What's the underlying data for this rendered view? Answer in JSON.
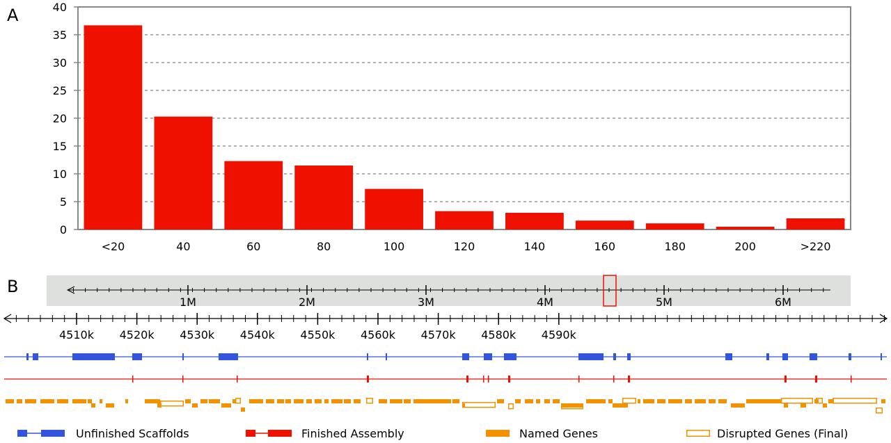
{
  "panels": {
    "a": "A",
    "b": "B"
  },
  "colors": {
    "bar": "#ee1100",
    "blue": "#3355dd",
    "red": "#ee1100",
    "orange": "#f39200",
    "frame": "#888888",
    "overview_bg": "#dde0dc"
  },
  "chart_data": {
    "type": "bar",
    "categories": [
      "<20",
      "40",
      "60",
      "80",
      "100",
      "120",
      "140",
      "160",
      "180",
      "200",
      ">220"
    ],
    "values": [
      36.7,
      20.3,
      12.3,
      11.5,
      7.3,
      3.3,
      3.0,
      1.6,
      1.1,
      0.5,
      2.0
    ],
    "title": "",
    "xlabel": "",
    "ylabel": "",
    "ylim": [
      0,
      40
    ],
    "yticks": [
      0,
      5,
      10,
      15,
      20,
      25,
      30,
      35,
      40
    ],
    "grid": "horizontal dashed"
  },
  "overview": {
    "ticks": [
      "1M",
      "2M",
      "3M",
      "4M",
      "5M",
      "6M"
    ]
  },
  "detail": {
    "ticks": [
      "4510k",
      "4520k",
      "4530k",
      "4540k",
      "4550k",
      "4560k",
      "4570k",
      "4580k",
      "4590k"
    ]
  },
  "legend": {
    "unfinished": "Unfinished Scaffolds",
    "finished": "Finished Assembly",
    "named": "Named Genes",
    "disrupted": "Disrupted Genes (Final)"
  }
}
